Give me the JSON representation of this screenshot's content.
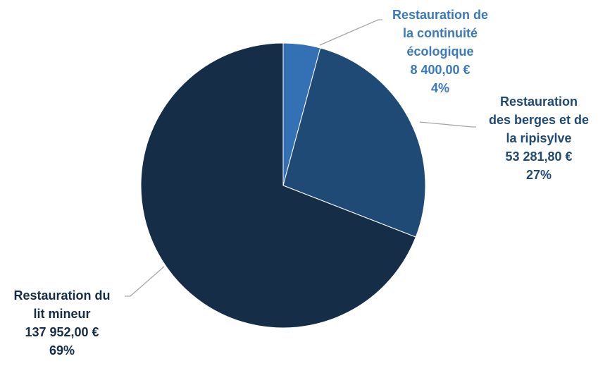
{
  "chart_data": {
    "type": "pie",
    "title": "",
    "start_angle_deg": 0,
    "direction": "clockwise",
    "slices": [
      {
        "label_lines": [
          "Restauration de",
          "la continuité",
          "écologique"
        ],
        "value": 8400.0,
        "value_text": "8 400,00 €",
        "percent_text": "4%",
        "color": "#3470B4",
        "label_color": "#3B79BE"
      },
      {
        "label_lines": [
          "Restauration",
          "des berges et de",
          "la ripisylve"
        ],
        "value": 53281.8,
        "value_text": "53 281,80 €",
        "percent_text": "27%",
        "color": "#1F4A75",
        "label_color": "#1F4A75"
      },
      {
        "label_lines": [
          "Restauration du",
          "lit mineur"
        ],
        "value": 137952.0,
        "value_text": "137 952,00 €",
        "percent_text": "69%",
        "color": "#152D47",
        "label_color": "#152D47"
      }
    ],
    "leader_line_color": "#A6A6A6",
    "background": "#FFFFFF"
  }
}
